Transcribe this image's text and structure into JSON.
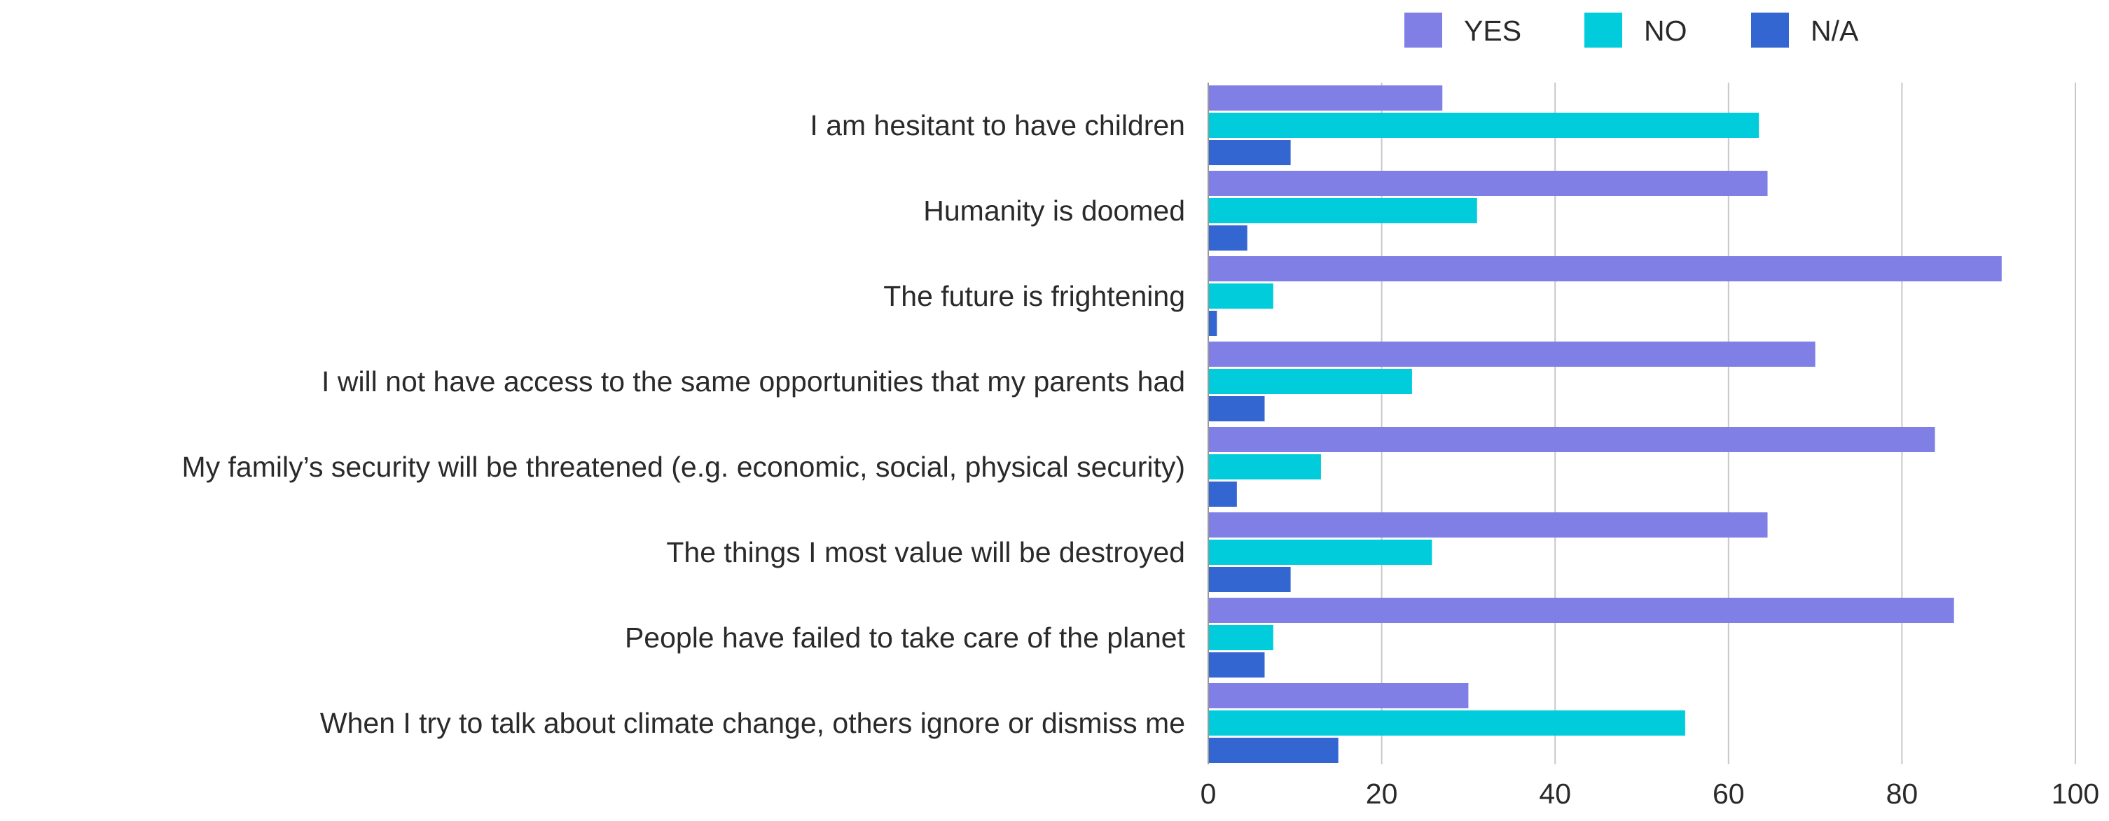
{
  "chart_data": {
    "type": "bar",
    "orientation": "horizontal",
    "title": "",
    "xlabel": "",
    "ylabel": "",
    "xlim": [
      0,
      100
    ],
    "x_ticks": [
      "0",
      "20",
      "40",
      "60",
      "80",
      "100"
    ],
    "grid": true,
    "legend_position": "top-right",
    "categories": [
      "I am hesitant to have children",
      "Humanity is doomed",
      "The future is frightening",
      "I will not have access to the same opportunities that my parents had",
      "My family’s security will be threatened (e.g. economic, social, physical security)",
      "The things I most value will be destroyed",
      "People have failed to take care of the planet",
      "When I try to talk about climate change, others ignore or dismiss me"
    ],
    "series": [
      {
        "name": "YES",
        "color": "#7f7fe6",
        "values": [
          27,
          64.5,
          91.5,
          70,
          83.8,
          64.5,
          86,
          30
        ]
      },
      {
        "name": "NO",
        "color": "#00ccdb",
        "values": [
          63.5,
          31,
          7.5,
          23.5,
          13,
          25.8,
          7.5,
          55
        ]
      },
      {
        "name": "N/A",
        "color": "#3366d1",
        "values": [
          9.5,
          4.5,
          1,
          6.5,
          3.3,
          9.5,
          6.5,
          15
        ]
      }
    ]
  }
}
